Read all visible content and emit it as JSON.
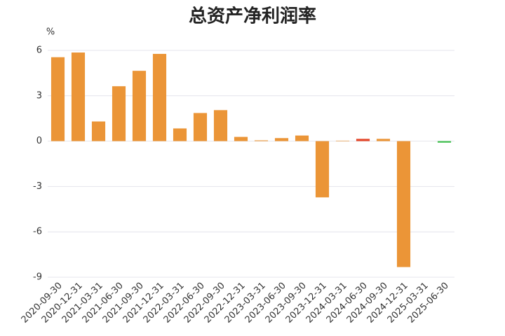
{
  "chart_data": {
    "type": "bar",
    "title": "总资产净利润率",
    "y_unit": "%",
    "categories": [
      "2020-09-30",
      "2020-12-31",
      "2021-03-31",
      "2021-06-30",
      "2021-09-30",
      "2021-12-31",
      "2022-03-31",
      "2022-06-30",
      "2022-09-30",
      "2022-12-31",
      "2023-03-31",
      "2023-06-30",
      "2023-09-30",
      "2023-12-31",
      "2024-03-31",
      "2024-06-30",
      "2024-09-30",
      "2024-12-31",
      "2025-03-31",
      "2025-06-30"
    ],
    "values": [
      5.55,
      5.86,
      1.3,
      3.63,
      4.65,
      5.77,
      0.84,
      1.86,
      2.05,
      0.28,
      0.05,
      0.2,
      0.37,
      -3.72,
      0.03,
      0.15,
      0.15,
      -8.33,
      0,
      -0.1
    ],
    "colors": [
      "#eb9537",
      "#eb9537",
      "#eb9537",
      "#eb9537",
      "#eb9537",
      "#eb9537",
      "#eb9537",
      "#eb9537",
      "#eb9537",
      "#eb9537",
      "#eb9537",
      "#eb9537",
      "#eb9537",
      "#eb9537",
      "#eb9537",
      "#e4472a",
      "#eb9537",
      "#eb9537",
      "#eb9537",
      "#3cbf4a"
    ],
    "ylim": [
      -9,
      6
    ],
    "yticks": [
      -9,
      -6,
      -3,
      0,
      3,
      6
    ],
    "grid": true
  }
}
